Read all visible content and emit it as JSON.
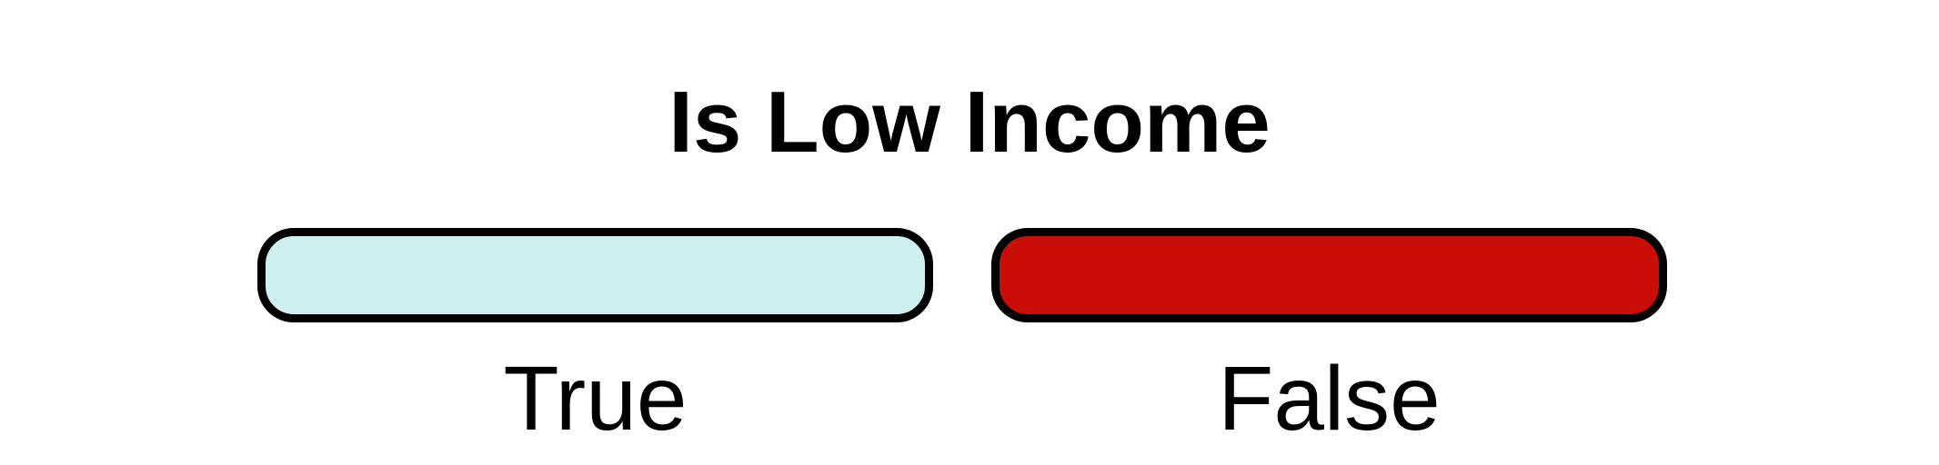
{
  "title": "Is Low Income",
  "options": [
    {
      "id": "true",
      "label": "True",
      "color": "#cff0f0",
      "selected": false
    },
    {
      "id": "false",
      "label": "False",
      "color": "#c80e07",
      "selected": true
    }
  ]
}
